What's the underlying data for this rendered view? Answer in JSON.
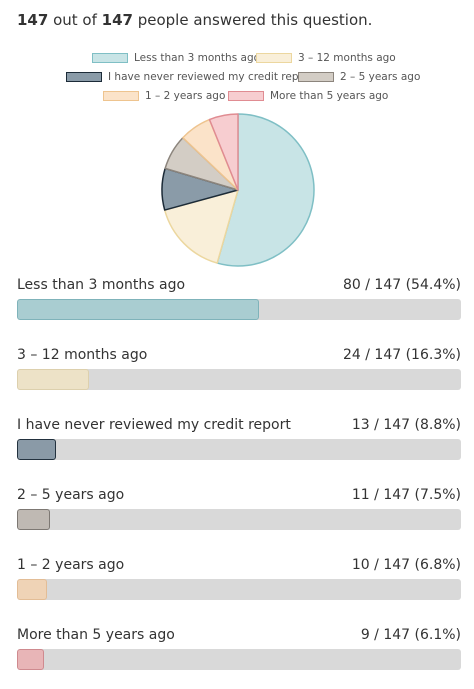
{
  "summary": {
    "answered": "147",
    "mid": " out of ",
    "total": "147",
    "suffix": " people answered this question."
  },
  "chart_data": {
    "type": "pie",
    "total": 147,
    "categories": [
      "Less than 3 months ago",
      "3 – 12 months ago",
      "I have never reviewed my credit report",
      "2 – 5 years ago",
      "1 – 2 years ago",
      "More than 5 years ago"
    ],
    "values": [
      80,
      24,
      13,
      11,
      10,
      9
    ],
    "value_labels": [
      "80 / 147 (54.4%)",
      "24 / 147 (16.3%)",
      "13 / 147 (8.8%)",
      "11 / 147 (7.5%)",
      "10 / 147 (6.8%)",
      "9 / 147 (6.1%)"
    ],
    "fill_colors": [
      "#c8e4e6",
      "#f9efd9",
      "#8a9ba8",
      "#d3cdc5",
      "#fbe3c9",
      "#f7cdd0"
    ],
    "border_colors": [
      "#7fbfc5",
      "#ecd79f",
      "#1c2b38",
      "#8c857d",
      "#eec48f",
      "#e08c92"
    ],
    "bar_colors": [
      "#a9cdd1",
      "#ede2c7",
      "#8a9aa7",
      "#bfb9b3",
      "#efd3b6",
      "#e8b5b7"
    ],
    "bar_border_colors": [
      "#7fb3ba",
      "#ddd0ad",
      "#23323f",
      "#7d7873",
      "#e3bd96",
      "#cf8a8f"
    ],
    "legend_placement": "top"
  }
}
